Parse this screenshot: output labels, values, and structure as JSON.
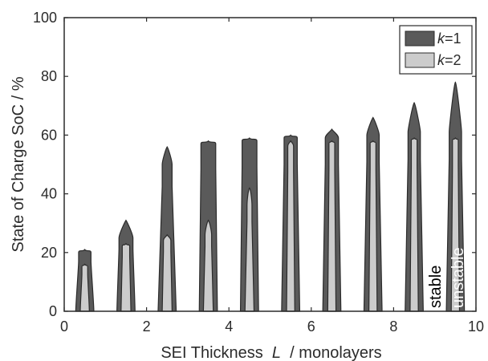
{
  "chart_data": {
    "type": "area",
    "xlabel_prefix": "SEI Thickness",
    "xlabel_var": "L",
    "xlabel_suffix": "/  monolayers",
    "ylabel": "State of Charge SoC  /  %",
    "xlim": [
      0,
      10
    ],
    "ylim": [
      0,
      100
    ],
    "xticks": [
      0,
      2,
      4,
      6,
      8,
      10
    ],
    "yticks": [
      0,
      20,
      40,
      60,
      80,
      100
    ],
    "legend_placement": "top-right",
    "series": [
      {
        "name_var": "k",
        "name_suffix": "=1",
        "color": "#5a5a5a",
        "peaks": [
          {
            "center": 0.5,
            "body_top": 20,
            "tip": 21,
            "base_half_width": 0.22,
            "top_half_width": 0.15
          },
          {
            "center": 1.5,
            "body_top": 25,
            "tip": 31,
            "base_half_width": 0.22,
            "top_half_width": 0.17
          },
          {
            "center": 2.5,
            "body_top": 50,
            "tip": 56,
            "base_half_width": 0.22,
            "top_half_width": 0.12
          },
          {
            "center": 3.5,
            "body_top": 57,
            "tip": 58,
            "base_half_width": 0.22,
            "top_half_width": 0.18
          },
          {
            "center": 4.5,
            "body_top": 58,
            "tip": 59,
            "base_half_width": 0.22,
            "top_half_width": 0.18
          },
          {
            "center": 5.5,
            "body_top": 59,
            "tip": 60,
            "base_half_width": 0.22,
            "top_half_width": 0.16
          },
          {
            "center": 6.5,
            "body_top": 59,
            "tip": 62,
            "base_half_width": 0.22,
            "top_half_width": 0.16
          },
          {
            "center": 7.5,
            "body_top": 60,
            "tip": 66,
            "base_half_width": 0.22,
            "top_half_width": 0.15
          },
          {
            "center": 8.5,
            "body_top": 61,
            "tip": 71,
            "base_half_width": 0.22,
            "top_half_width": 0.15
          },
          {
            "center": 9.5,
            "body_top": 61,
            "tip": 78,
            "base_half_width": 0.22,
            "top_half_width": 0.15
          }
        ]
      },
      {
        "name_var": "k",
        "name_suffix": "=2",
        "color": "#cccccc",
        "peaks": [
          {
            "center": 0.5,
            "body_top": 15,
            "tip": 16,
            "base_half_width": 0.11,
            "top_half_width": 0.07
          },
          {
            "center": 1.5,
            "body_top": 22,
            "tip": 23,
            "base_half_width": 0.12,
            "top_half_width": 0.09
          },
          {
            "center": 2.5,
            "body_top": 24,
            "tip": 26,
            "base_half_width": 0.12,
            "top_half_width": 0.09
          },
          {
            "center": 3.5,
            "body_top": 26,
            "tip": 31,
            "base_half_width": 0.12,
            "top_half_width": 0.08
          },
          {
            "center": 4.5,
            "body_top": 36,
            "tip": 42,
            "base_half_width": 0.11,
            "top_half_width": 0.06
          },
          {
            "center": 5.5,
            "body_top": 56,
            "tip": 58,
            "base_half_width": 0.1,
            "top_half_width": 0.07
          },
          {
            "center": 6.5,
            "body_top": 57,
            "tip": 58,
            "base_half_width": 0.1,
            "top_half_width": 0.07
          },
          {
            "center": 7.5,
            "body_top": 57,
            "tip": 58,
            "base_half_width": 0.1,
            "top_half_width": 0.07
          },
          {
            "center": 8.5,
            "body_top": 58,
            "tip": 59,
            "base_half_width": 0.1,
            "top_half_width": 0.07
          },
          {
            "center": 9.5,
            "body_top": 58,
            "tip": 59,
            "base_half_width": 0.1,
            "top_half_width": 0.07
          }
        ]
      }
    ],
    "annotations": {
      "stable": "stable",
      "unstable": "unstable"
    }
  }
}
